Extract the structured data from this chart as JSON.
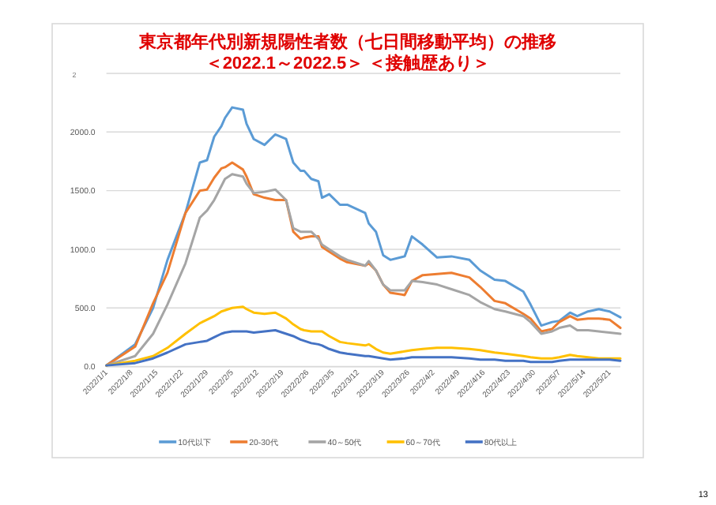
{
  "chart_data": {
    "type": "line",
    "title": "東京都年代別新規陽性者数（七日間移動平均）の推移",
    "subtitle": "＜2022.1～2022.5＞ ＜接触歴あり＞",
    "x": [
      "2022-01-01",
      "2022-01-09",
      "2022-01-14",
      "2022-01-18",
      "2022-01-23",
      "2022-01-27",
      "2022-01-29",
      "2022-01-31",
      "2022-02-02",
      "2022-02-03",
      "2022-02-05",
      "2022-02-08",
      "2022-02-09",
      "2022-02-11",
      "2022-02-14",
      "2022-02-17",
      "2022-02-20",
      "2022-02-22",
      "2022-02-24",
      "2022-02-25",
      "2022-02-27",
      "2022-03-01",
      "2022-03-02",
      "2022-03-04",
      "2022-03-07",
      "2022-03-09",
      "2022-03-14",
      "2022-03-15",
      "2022-03-17",
      "2022-03-19",
      "2022-03-21",
      "2022-03-25",
      "2022-03-27",
      "2022-03-30",
      "2022-04-03",
      "2022-04-07",
      "2022-04-12",
      "2022-04-15",
      "2022-04-19",
      "2022-04-22",
      "2022-04-27",
      "2022-04-29",
      "2022-05-02",
      "2022-05-05",
      "2022-05-07",
      "2022-05-10",
      "2022-05-12",
      "2022-05-15",
      "2022-05-18",
      "2022-05-21",
      "2022-05-24"
    ],
    "series": [
      {
        "name": "10代以下",
        "color": "#5b9bd5",
        "values": [
          10,
          190,
          500,
          910,
          1310,
          1740,
          1760,
          1960,
          2050,
          2120,
          2210,
          2190,
          2070,
          1940,
          1890,
          1980,
          1940,
          1740,
          1670,
          1670,
          1600,
          1580,
          1440,
          1470,
          1380,
          1380,
          1310,
          1220,
          1150,
          950,
          910,
          940,
          1110,
          1040,
          930,
          940,
          910,
          820,
          740,
          730,
          640,
          530,
          350,
          380,
          390,
          460,
          430,
          470,
          490,
          470,
          420
        ]
      },
      {
        "name": "20-30代",
        "color": "#ed7d31",
        "values": [
          10,
          170,
          540,
          800,
          1310,
          1500,
          1510,
          1610,
          1690,
          1700,
          1740,
          1680,
          1620,
          1470,
          1440,
          1420,
          1420,
          1150,
          1090,
          1100,
          1110,
          1110,
          1020,
          980,
          920,
          890,
          860,
          880,
          820,
          700,
          630,
          610,
          730,
          780,
          790,
          800,
          760,
          680,
          560,
          540,
          450,
          410,
          300,
          320,
          380,
          430,
          400,
          410,
          410,
          400,
          330
        ]
      },
      {
        "name": "40～50代",
        "color": "#a5a5a5",
        "values": [
          10,
          90,
          280,
          530,
          880,
          1270,
          1330,
          1420,
          1540,
          1600,
          1640,
          1620,
          1560,
          1480,
          1490,
          1510,
          1420,
          1180,
          1150,
          1150,
          1150,
          1090,
          1040,
          1000,
          940,
          910,
          860,
          900,
          820,
          700,
          650,
          650,
          730,
          720,
          700,
          660,
          610,
          550,
          490,
          470,
          430,
          380,
          280,
          300,
          330,
          350,
          310,
          310,
          300,
          290,
          280
        ]
      },
      {
        "name": "60～70代",
        "color": "#ffc000",
        "values": [
          10,
          50,
          90,
          160,
          280,
          370,
          400,
          430,
          470,
          480,
          500,
          510,
          490,
          460,
          450,
          460,
          410,
          360,
          320,
          310,
          300,
          300,
          300,
          260,
          210,
          200,
          180,
          190,
          150,
          120,
          110,
          130,
          140,
          150,
          160,
          160,
          150,
          140,
          120,
          110,
          90,
          80,
          70,
          70,
          80,
          100,
          90,
          80,
          70,
          70,
          70
        ]
      },
      {
        "name": "80代以上",
        "color": "#4472c4",
        "values": [
          10,
          30,
          70,
          120,
          190,
          210,
          220,
          250,
          280,
          290,
          300,
          300,
          300,
          290,
          300,
          310,
          280,
          260,
          230,
          220,
          200,
          190,
          180,
          150,
          120,
          110,
          90,
          90,
          80,
          70,
          60,
          70,
          80,
          80,
          80,
          80,
          70,
          60,
          60,
          50,
          50,
          40,
          40,
          40,
          50,
          60,
          60,
          60,
          60,
          60,
          50
        ]
      }
    ],
    "xlim": [
      "2022-01-01",
      "2022-05-24"
    ],
    "xticks": [
      {
        "value": "2022-01-01",
        "label": "2022/1/1"
      },
      {
        "value": "2022-01-08",
        "label": "2022/1/8"
      },
      {
        "value": "2022-01-15",
        "label": "2022/1/15"
      },
      {
        "value": "2022-01-22",
        "label": "2022/1/22"
      },
      {
        "value": "2022-01-29",
        "label": "2022/1/29"
      },
      {
        "value": "2022-02-05",
        "label": "2022/2/5"
      },
      {
        "value": "2022-02-12",
        "label": "2022/2/12"
      },
      {
        "value": "2022-02-19",
        "label": "2022/2/19"
      },
      {
        "value": "2022-02-26",
        "label": "2022/2/26"
      },
      {
        "value": "2022-03-05",
        "label": "2022/3/5"
      },
      {
        "value": "2022-03-12",
        "label": "2022/3/12"
      },
      {
        "value": "2022-03-19",
        "label": "2022/3/19"
      },
      {
        "value": "2022-03-26",
        "label": "2022/3/26"
      },
      {
        "value": "2022-04-02",
        "label": "2022/4/2"
      },
      {
        "value": "2022-04-09",
        "label": "2022/4/9"
      },
      {
        "value": "2022-04-16",
        "label": "2022/4/16"
      },
      {
        "value": "2022-04-23",
        "label": "2022/4/23"
      },
      {
        "value": "2022-04-30",
        "label": "2022/4/30"
      },
      {
        "value": "2022-05-07",
        "label": "2022/5/7"
      },
      {
        "value": "2022-05-14",
        "label": "2022/5/14"
      },
      {
        "value": "2022-05-21",
        "label": "2022/5/21"
      }
    ],
    "ylim": [
      0,
      2500
    ],
    "yticks": [
      {
        "value": 0,
        "label": "0.0"
      },
      {
        "value": 500,
        "label": "500.0"
      },
      {
        "value": 1000,
        "label": "1000.0"
      },
      {
        "value": 1500,
        "label": "1500.0"
      },
      {
        "value": 2000,
        "label": "2000.0"
      },
      {
        "value": 2500,
        "label": null
      }
    ],
    "grid": "y",
    "legend": "bottom",
    "marker": "none",
    "line_style": "solid",
    "annotations": [
      "2",
      "13"
    ]
  }
}
